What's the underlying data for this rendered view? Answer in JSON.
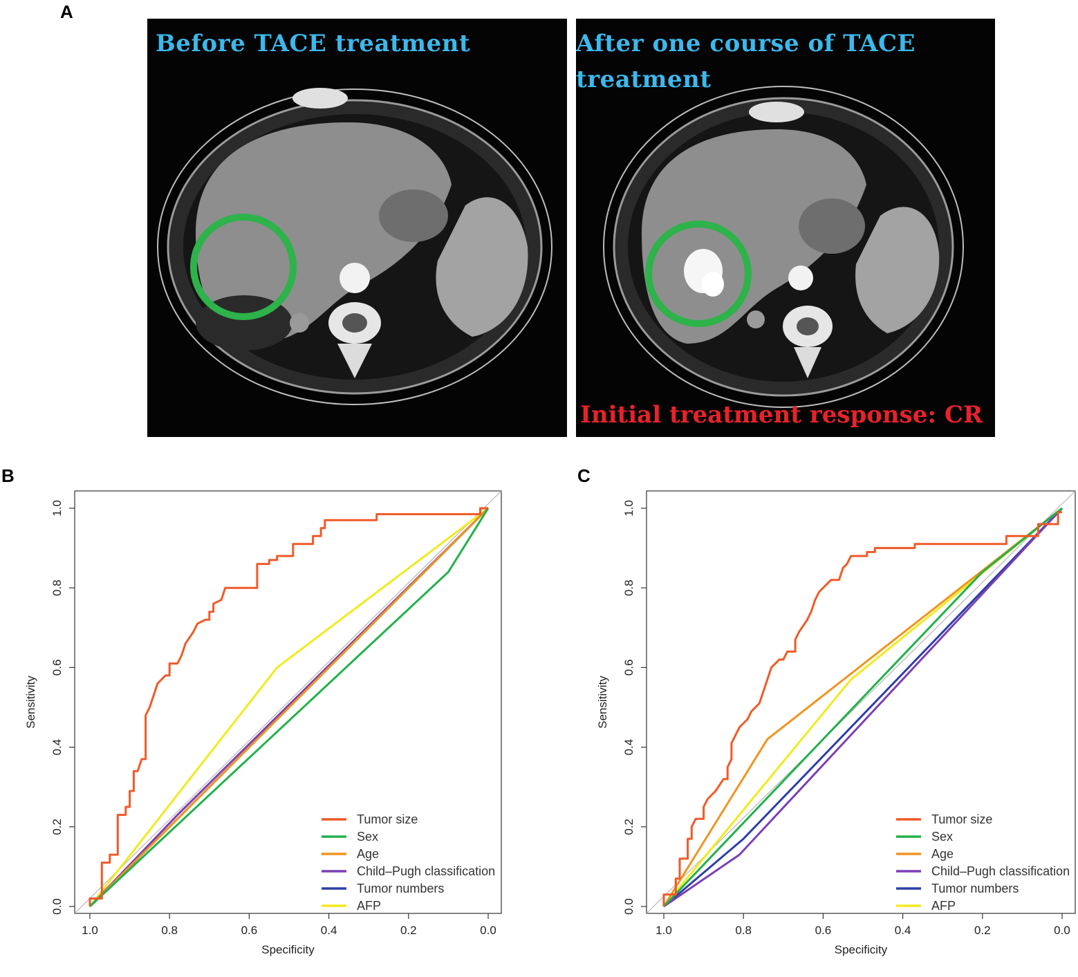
{
  "panels": {
    "a": {
      "letter": "A",
      "before_caption": "Before  TACE treatment",
      "after_caption_line1": "After  one course of TACE",
      "after_caption_line2": "treatment",
      "response_label": "Initial treatment response: CR",
      "lesion_marker_color": "#2db34a"
    },
    "b": {
      "letter": "B"
    },
    "c": {
      "letter": "C"
    }
  },
  "chart_data": [
    {
      "type": "line",
      "panel": "B",
      "xlabel": "Specificity",
      "ylabel": "Sensitivity",
      "xlim": [
        1.0,
        0.0
      ],
      "ylim": [
        0.0,
        1.0
      ],
      "x_ticks": [
        "1.0",
        "0.8",
        "0.6",
        "0.4",
        "0.2",
        "0.0"
      ],
      "y_ticks": [
        "0.0",
        "0.2",
        "0.4",
        "0.6",
        "0.8",
        "1.0"
      ],
      "legend_position": "bottom-right",
      "series": [
        {
          "name": "Tumor size",
          "color": "#f05a28",
          "step": true,
          "points": [
            [
              1.0,
              0.0
            ],
            [
              1.0,
              0.02
            ],
            [
              0.97,
              0.02
            ],
            [
              0.97,
              0.11
            ],
            [
              0.95,
              0.11
            ],
            [
              0.95,
              0.13
            ],
            [
              0.93,
              0.13
            ],
            [
              0.93,
              0.23
            ],
            [
              0.91,
              0.23
            ],
            [
              0.91,
              0.25
            ],
            [
              0.9,
              0.25
            ],
            [
              0.9,
              0.29
            ],
            [
              0.89,
              0.29
            ],
            [
              0.89,
              0.34
            ],
            [
              0.88,
              0.34
            ],
            [
              0.87,
              0.37
            ],
            [
              0.86,
              0.37
            ],
            [
              0.86,
              0.48
            ],
            [
              0.85,
              0.5
            ],
            [
              0.84,
              0.53
            ],
            [
              0.83,
              0.56
            ],
            [
              0.82,
              0.57
            ],
            [
              0.81,
              0.58
            ],
            [
              0.8,
              0.58
            ],
            [
              0.8,
              0.61
            ],
            [
              0.78,
              0.61
            ],
            [
              0.77,
              0.63
            ],
            [
              0.76,
              0.66
            ],
            [
              0.74,
              0.69
            ],
            [
              0.73,
              0.71
            ],
            [
              0.71,
              0.72
            ],
            [
              0.7,
              0.72
            ],
            [
              0.7,
              0.74
            ],
            [
              0.69,
              0.74
            ],
            [
              0.69,
              0.76
            ],
            [
              0.67,
              0.77
            ],
            [
              0.66,
              0.8
            ],
            [
              0.58,
              0.8
            ],
            [
              0.58,
              0.86
            ],
            [
              0.55,
              0.86
            ],
            [
              0.55,
              0.87
            ],
            [
              0.53,
              0.87
            ],
            [
              0.53,
              0.88
            ],
            [
              0.49,
              0.88
            ],
            [
              0.49,
              0.91
            ],
            [
              0.44,
              0.91
            ],
            [
              0.44,
              0.93
            ],
            [
              0.42,
              0.93
            ],
            [
              0.42,
              0.95
            ],
            [
              0.41,
              0.95
            ],
            [
              0.41,
              0.97
            ],
            [
              0.28,
              0.97
            ],
            [
              0.28,
              0.985
            ],
            [
              0.02,
              0.985
            ],
            [
              0.02,
              1.0
            ],
            [
              0.0,
              1.0
            ]
          ]
        },
        {
          "name": "Sex",
          "color": "#22b14c",
          "step": false,
          "points": [
            [
              1.0,
              0.0
            ],
            [
              0.1,
              0.84
            ],
            [
              0.0,
              1.0
            ]
          ]
        },
        {
          "name": "Age",
          "color": "#f0941e",
          "step": false,
          "points": [
            [
              1.0,
              0.0
            ],
            [
              0.8,
              0.2
            ],
            [
              0.0,
              1.0
            ]
          ]
        },
        {
          "name": "Child–Pugh classification",
          "color": "#7b3fb5",
          "step": false,
          "points": [
            [
              1.0,
              0.0
            ],
            [
              0.78,
              0.23
            ],
            [
              0.0,
              1.0
            ]
          ]
        },
        {
          "name": "Tumor numbers",
          "color": "#2d3fa6",
          "step": false,
          "points": [
            [
              1.0,
              0.0
            ],
            [
              0.0,
              1.0
            ]
          ]
        },
        {
          "name": "AFP",
          "color": "#f2ea1e",
          "step": false,
          "points": [
            [
              1.0,
              0.0
            ],
            [
              0.53,
              0.6
            ],
            [
              0.0,
              1.0
            ]
          ]
        }
      ]
    },
    {
      "type": "line",
      "panel": "C",
      "xlabel": "Specificity",
      "ylabel": "Sensitivity",
      "xlim": [
        1.0,
        0.0
      ],
      "ylim": [
        0.0,
        1.0
      ],
      "x_ticks": [
        "1.0",
        "0.8",
        "0.6",
        "0.4",
        "0.2",
        "0.0"
      ],
      "y_ticks": [
        "0.0",
        "0.2",
        "0.4",
        "0.6",
        "0.8",
        "1.0"
      ],
      "legend_position": "bottom-right",
      "series": [
        {
          "name": "Tumor size",
          "color": "#f05a28",
          "step": true,
          "points": [
            [
              1.0,
              0.0
            ],
            [
              1.0,
              0.03
            ],
            [
              0.97,
              0.03
            ],
            [
              0.97,
              0.07
            ],
            [
              0.96,
              0.07
            ],
            [
              0.96,
              0.12
            ],
            [
              0.94,
              0.12
            ],
            [
              0.94,
              0.17
            ],
            [
              0.93,
              0.17
            ],
            [
              0.93,
              0.2
            ],
            [
              0.92,
              0.22
            ],
            [
              0.9,
              0.22
            ],
            [
              0.9,
              0.25
            ],
            [
              0.89,
              0.27
            ],
            [
              0.87,
              0.29
            ],
            [
              0.85,
              0.32
            ],
            [
              0.84,
              0.32
            ],
            [
              0.84,
              0.35
            ],
            [
              0.83,
              0.37
            ],
            [
              0.83,
              0.41
            ],
            [
              0.82,
              0.43
            ],
            [
              0.81,
              0.45
            ],
            [
              0.8,
              0.46
            ],
            [
              0.79,
              0.47
            ],
            [
              0.78,
              0.49
            ],
            [
              0.76,
              0.51
            ],
            [
              0.75,
              0.54
            ],
            [
              0.74,
              0.57
            ],
            [
              0.73,
              0.6
            ],
            [
              0.71,
              0.62
            ],
            [
              0.7,
              0.62
            ],
            [
              0.69,
              0.64
            ],
            [
              0.67,
              0.64
            ],
            [
              0.67,
              0.67
            ],
            [
              0.66,
              0.69
            ],
            [
              0.64,
              0.72
            ],
            [
              0.63,
              0.74
            ],
            [
              0.62,
              0.77
            ],
            [
              0.61,
              0.79
            ],
            [
              0.6,
              0.8
            ],
            [
              0.58,
              0.82
            ],
            [
              0.56,
              0.82
            ],
            [
              0.55,
              0.85
            ],
            [
              0.54,
              0.86
            ],
            [
              0.53,
              0.88
            ],
            [
              0.49,
              0.88
            ],
            [
              0.49,
              0.89
            ],
            [
              0.47,
              0.89
            ],
            [
              0.47,
              0.9
            ],
            [
              0.37,
              0.9
            ],
            [
              0.37,
              0.91
            ],
            [
              0.14,
              0.91
            ],
            [
              0.14,
              0.93
            ],
            [
              0.06,
              0.93
            ],
            [
              0.06,
              0.96
            ],
            [
              0.01,
              0.96
            ],
            [
              0.01,
              0.99
            ],
            [
              0.0,
              0.99
            ]
          ]
        },
        {
          "name": "Sex",
          "color": "#22b14c",
          "step": false,
          "points": [
            [
              1.0,
              0.0
            ],
            [
              0.2,
              0.84
            ],
            [
              0.0,
              1.0
            ]
          ]
        },
        {
          "name": "Age",
          "color": "#f0941e",
          "step": false,
          "points": [
            [
              1.0,
              0.0
            ],
            [
              0.74,
              0.42
            ],
            [
              0.0,
              1.0
            ]
          ]
        },
        {
          "name": "Child–Pugh classification",
          "color": "#7b3fb5",
          "step": false,
          "points": [
            [
              1.0,
              0.0
            ],
            [
              0.81,
              0.13
            ],
            [
              0.0,
              1.0
            ]
          ]
        },
        {
          "name": "Tumor numbers",
          "color": "#2d3fa6",
          "step": false,
          "points": [
            [
              1.0,
              0.0
            ],
            [
              0.8,
              0.17
            ],
            [
              0.0,
              1.0
            ]
          ]
        },
        {
          "name": "AFP",
          "color": "#f2ea1e",
          "step": false,
          "points": [
            [
              1.0,
              0.0
            ],
            [
              0.53,
              0.57
            ],
            [
              0.0,
              1.0
            ]
          ]
        }
      ]
    }
  ]
}
